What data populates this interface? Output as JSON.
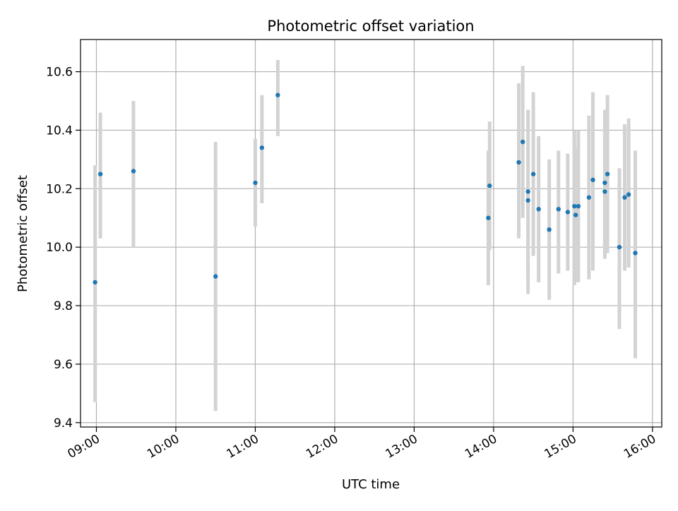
{
  "chart_data": {
    "type": "scatter",
    "title": "Photometric offset variation",
    "xlabel": "UTC time",
    "ylabel": "Photometric offset",
    "x_unit": "UTC time (HH:MM)",
    "xlim": [
      "08:48",
      "16:07"
    ],
    "ylim": [
      9.385,
      10.71
    ],
    "grid": true,
    "xticks": [
      "09:00",
      "10:00",
      "11:00",
      "12:00",
      "13:00",
      "14:00",
      "15:00",
      "16:00"
    ],
    "yticks": [
      9.4,
      9.6,
      9.8,
      10.0,
      10.2,
      10.4,
      10.6
    ],
    "ytick_labels": [
      "9.4",
      "9.6",
      "9.8",
      "10.0",
      "10.2",
      "10.4",
      "10.6"
    ],
    "colors": {
      "point": "#1f77b4",
      "errorbar": "#d3d3d3",
      "grid": "#b0b0b0"
    },
    "series": [
      {
        "points": [
          {
            "x": "08:59",
            "y": 9.88,
            "ylo": 9.47,
            "yhi": 10.28
          },
          {
            "x": "09:03",
            "y": 10.25,
            "ylo": 10.03,
            "yhi": 10.46
          },
          {
            "x": "09:28",
            "y": 10.26,
            "ylo": 10.0,
            "yhi": 10.5
          },
          {
            "x": "10:30",
            "y": 9.9,
            "ylo": 9.44,
            "yhi": 10.36
          },
          {
            "x": "11:00",
            "y": 10.22,
            "ylo": 10.07,
            "yhi": 10.37
          },
          {
            "x": "11:05",
            "y": 10.34,
            "ylo": 10.15,
            "yhi": 10.52
          },
          {
            "x": "11:17",
            "y": 10.52,
            "ylo": 10.38,
            "yhi": 10.64
          },
          {
            "x": "13:56",
            "y": 10.1,
            "ylo": 9.87,
            "yhi": 10.33
          },
          {
            "x": "13:57",
            "y": 10.21,
            "ylo": 9.99,
            "yhi": 10.43
          },
          {
            "x": "14:19",
            "y": 10.29,
            "ylo": 10.03,
            "yhi": 10.56
          },
          {
            "x": "14:22",
            "y": 10.36,
            "ylo": 10.1,
            "yhi": 10.62
          },
          {
            "x": "14:26",
            "y": 10.19,
            "ylo": 9.9,
            "yhi": 10.47
          },
          {
            "x": "14:26",
            "y": 10.16,
            "ylo": 9.84,
            "yhi": 10.47
          },
          {
            "x": "14:30",
            "y": 10.25,
            "ylo": 9.97,
            "yhi": 10.53
          },
          {
            "x": "14:34",
            "y": 10.13,
            "ylo": 9.88,
            "yhi": 10.38
          },
          {
            "x": "14:42",
            "y": 10.06,
            "ylo": 9.82,
            "yhi": 10.3
          },
          {
            "x": "14:49",
            "y": 10.13,
            "ylo": 9.91,
            "yhi": 10.33
          },
          {
            "x": "14:56",
            "y": 10.12,
            "ylo": 9.92,
            "yhi": 10.32
          },
          {
            "x": "15:01",
            "y": 10.14,
            "ylo": 9.87,
            "yhi": 10.4
          },
          {
            "x": "15:02",
            "y": 10.11,
            "ylo": 9.88,
            "yhi": 10.34
          },
          {
            "x": "15:04",
            "y": 10.14,
            "ylo": 9.88,
            "yhi": 10.4
          },
          {
            "x": "15:12",
            "y": 10.17,
            "ylo": 9.89,
            "yhi": 10.45
          },
          {
            "x": "15:15",
            "y": 10.23,
            "ylo": 9.92,
            "yhi": 10.53
          },
          {
            "x": "15:24",
            "y": 10.22,
            "ylo": 9.96,
            "yhi": 10.47
          },
          {
            "x": "15:24",
            "y": 10.19,
            "ylo": 9.97,
            "yhi": 10.4
          },
          {
            "x": "15:26",
            "y": 10.25,
            "ylo": 9.98,
            "yhi": 10.52
          },
          {
            "x": "15:35",
            "y": 10.0,
            "ylo": 9.72,
            "yhi": 10.27
          },
          {
            "x": "15:39",
            "y": 10.17,
            "ylo": 9.92,
            "yhi": 10.42
          },
          {
            "x": "15:42",
            "y": 10.18,
            "ylo": 9.93,
            "yhi": 10.44
          },
          {
            "x": "15:47",
            "y": 9.98,
            "ylo": 9.62,
            "yhi": 10.33
          }
        ]
      }
    ]
  }
}
